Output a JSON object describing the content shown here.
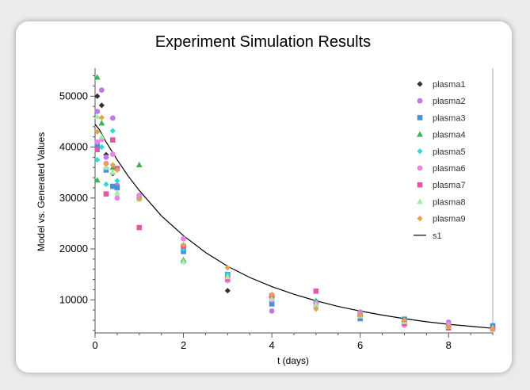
{
  "chart_data": {
    "type": "scatter",
    "title": "Experiment Simulation Results",
    "xlabel": "t (days)",
    "ylabel": "Model vs. Generated Values",
    "xlim": [
      0,
      9
    ],
    "ylim": [
      3500,
      55500
    ],
    "x_ticks": [
      "0",
      "2",
      "4",
      "6",
      "8"
    ],
    "y_ticks": [
      "10000",
      "20000",
      "30000",
      "40000",
      "50000"
    ],
    "legend_position": "top-right",
    "grid": false,
    "series": [
      {
        "name": "plasma1",
        "marker": "diamond",
        "color": "#333333",
        "points": [
          [
            0.05,
            50000
          ],
          [
            0.15,
            48200
          ],
          [
            0.25,
            38500
          ],
          [
            0.4,
            34800
          ],
          [
            1,
            30000
          ],
          [
            2,
            20500
          ],
          [
            3,
            11800
          ],
          [
            4,
            11000
          ],
          [
            5,
            9500
          ],
          [
            6,
            6800
          ],
          [
            7,
            5800
          ],
          [
            8,
            4500
          ],
          [
            9,
            4500
          ]
        ]
      },
      {
        "name": "plasma2",
        "marker": "circle",
        "color": "#c07ae0",
        "points": [
          [
            0.05,
            47000
          ],
          [
            0.15,
            51200
          ],
          [
            0.25,
            38000
          ],
          [
            0.4,
            45700
          ],
          [
            0.5,
            32500
          ],
          [
            1,
            30500
          ],
          [
            2,
            17500
          ],
          [
            3,
            14500
          ],
          [
            4,
            7800
          ],
          [
            5,
            8700
          ],
          [
            6,
            7600
          ],
          [
            7,
            5400
          ],
          [
            8,
            5600
          ],
          [
            9,
            4500
          ]
        ]
      },
      {
        "name": "plasma3",
        "marker": "square",
        "color": "#4a90d9",
        "points": [
          [
            0.05,
            40500
          ],
          [
            0.25,
            35500
          ],
          [
            0.4,
            32300
          ],
          [
            0.5,
            32000
          ],
          [
            1,
            30200
          ],
          [
            2,
            19500
          ],
          [
            3,
            15000
          ],
          [
            4,
            9200
          ],
          [
            5,
            9500
          ],
          [
            6,
            6300
          ],
          [
            7,
            6200
          ],
          [
            8,
            4600
          ],
          [
            9,
            4900
          ]
        ]
      },
      {
        "name": "plasma4",
        "marker": "triangle",
        "color": "#3cb550",
        "points": [
          [
            0.05,
            53700
          ],
          [
            0.15,
            44700
          ],
          [
            0.05,
            33500
          ],
          [
            0.4,
            36000
          ],
          [
            1,
            36500
          ],
          [
            2,
            17800
          ],
          [
            3,
            14000
          ],
          [
            4,
            11000
          ],
          [
            5,
            9800
          ],
          [
            6,
            7200
          ],
          [
            7,
            5600
          ],
          [
            8,
            5000
          ],
          [
            9,
            4700
          ]
        ]
      },
      {
        "name": "plasma5",
        "marker": "diamond",
        "color": "#2ed8d8",
        "points": [
          [
            0.05,
            37500
          ],
          [
            0.15,
            40000
          ],
          [
            0.25,
            32700
          ],
          [
            0.4,
            43200
          ],
          [
            0.5,
            33400
          ],
          [
            1,
            30000
          ],
          [
            2,
            20000
          ],
          [
            3,
            15000
          ],
          [
            4,
            10500
          ],
          [
            5,
            9500
          ],
          [
            6,
            7000
          ],
          [
            7,
            5400
          ],
          [
            8,
            4600
          ],
          [
            9,
            4500
          ]
        ]
      },
      {
        "name": "plasma6",
        "marker": "circle",
        "color": "#e985e6",
        "points": [
          [
            0.05,
            41000
          ],
          [
            0.15,
            41500
          ],
          [
            0.25,
            36800
          ],
          [
            0.4,
            38600
          ],
          [
            0.5,
            30000
          ],
          [
            1,
            30500
          ],
          [
            2,
            22000
          ],
          [
            3,
            13800
          ],
          [
            4,
            10000
          ],
          [
            5,
            9300
          ],
          [
            6,
            7200
          ],
          [
            7,
            5000
          ],
          [
            8,
            5200
          ],
          [
            9,
            4300
          ]
        ]
      },
      {
        "name": "plasma7",
        "marker": "square",
        "color": "#e456a9",
        "points": [
          [
            0.05,
            39500
          ],
          [
            0.25,
            30800
          ],
          [
            0.4,
            41400
          ],
          [
            0.5,
            35800
          ],
          [
            1,
            24200
          ],
          [
            2,
            20500
          ],
          [
            3,
            14200
          ],
          [
            4,
            10800
          ],
          [
            5,
            11700
          ],
          [
            6,
            6800
          ],
          [
            7,
            5400
          ],
          [
            8,
            4500
          ],
          [
            9,
            4300
          ]
        ]
      },
      {
        "name": "plasma8",
        "marker": "triangle",
        "color": "#a8eba8",
        "points": [
          [
            0.05,
            46000
          ],
          [
            0.15,
            42000
          ],
          [
            0.25,
            36000
          ],
          [
            0.4,
            35000
          ],
          [
            0.5,
            31000
          ],
          [
            1,
            29800
          ],
          [
            2,
            17500
          ],
          [
            3,
            14500
          ],
          [
            4,
            10200
          ],
          [
            5,
            9000
          ],
          [
            6,
            6800
          ],
          [
            7,
            5700
          ],
          [
            8,
            4800
          ],
          [
            9,
            4400
          ]
        ]
      },
      {
        "name": "plasma9",
        "marker": "diamond",
        "color": "#e8a04a",
        "points": [
          [
            0.05,
            43000
          ],
          [
            0.15,
            45800
          ],
          [
            0.25,
            36700
          ],
          [
            0.4,
            36500
          ],
          [
            0.5,
            35500
          ],
          [
            1,
            29800
          ],
          [
            2,
            20800
          ],
          [
            3,
            16300
          ],
          [
            4,
            11000
          ],
          [
            5,
            8200
          ],
          [
            6,
            7000
          ],
          [
            7,
            6000
          ],
          [
            8,
            4700
          ],
          [
            9,
            4200
          ]
        ]
      }
    ],
    "fit_line": {
      "name": "s1",
      "color": "#000000",
      "points": [
        [
          0,
          44500
        ],
        [
          0.1,
          43400
        ],
        [
          0.25,
          41000
        ],
        [
          0.5,
          37500
        ],
        [
          0.75,
          34300
        ],
        [
          1,
          31500
        ],
        [
          1.5,
          26500
        ],
        [
          2,
          22600
        ],
        [
          2.5,
          19300
        ],
        [
          3,
          16600
        ],
        [
          3.5,
          14400
        ],
        [
          4,
          12600
        ],
        [
          4.5,
          11100
        ],
        [
          5,
          9800
        ],
        [
          5.5,
          8700
        ],
        [
          6,
          7800
        ],
        [
          6.5,
          7000
        ],
        [
          7,
          6300
        ],
        [
          7.5,
          5700
        ],
        [
          8,
          5200
        ],
        [
          8.5,
          4800
        ],
        [
          9,
          4400
        ]
      ]
    }
  }
}
